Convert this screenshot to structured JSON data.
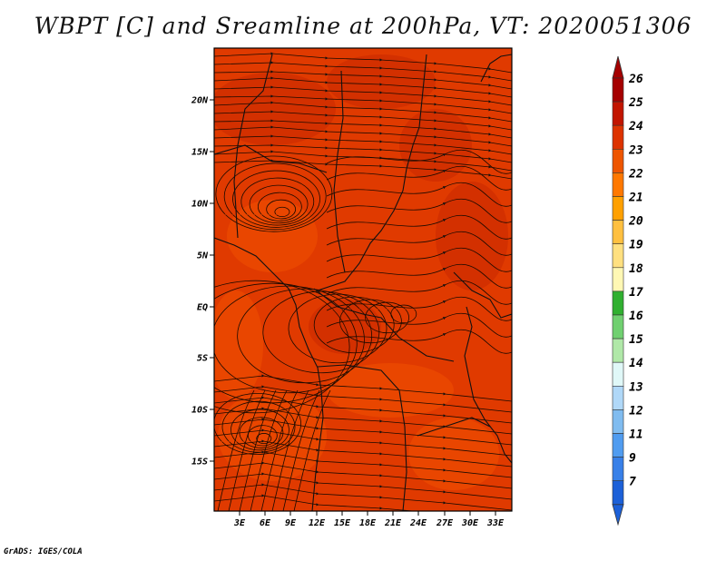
{
  "title": "WBPT [C] and Sreamline at 200hPa, VT: 2020051306",
  "credit": "GrADS: IGES/COLA",
  "map": {
    "lat_labels": [
      "20N",
      "15N",
      "10N",
      "5N",
      "EQ",
      "5S",
      "10S",
      "15S"
    ],
    "lon_labels": [
      "3E",
      "6E",
      "9E",
      "12E",
      "15E",
      "18E",
      "21E",
      "24E",
      "27E",
      "30E",
      "33E"
    ],
    "field_color": "#e03a00",
    "field_color_dark": "#c82800",
    "field_color_light": "#f05000"
  },
  "colorbar": {
    "labels": [
      "26",
      "25",
      "24",
      "23",
      "22",
      "21",
      "20",
      "19",
      "18",
      "17",
      "16",
      "15",
      "14",
      "13",
      "12",
      "11",
      "9",
      "7"
    ],
    "colors": [
      "#a50000",
      "#c21500",
      "#dd3300",
      "#ee5500",
      "#ff7800",
      "#ffa000",
      "#ffc040",
      "#ffe080",
      "#fff8b4",
      "#30b030",
      "#70d070",
      "#b0e8a8",
      "#e0f8f8",
      "#b0d8f8",
      "#80bcf0",
      "#509cf0",
      "#3880e8",
      "#1c60d8"
    ],
    "top_arrow_color": "#a50000",
    "bottom_arrow_color": "#1c60d8"
  }
}
